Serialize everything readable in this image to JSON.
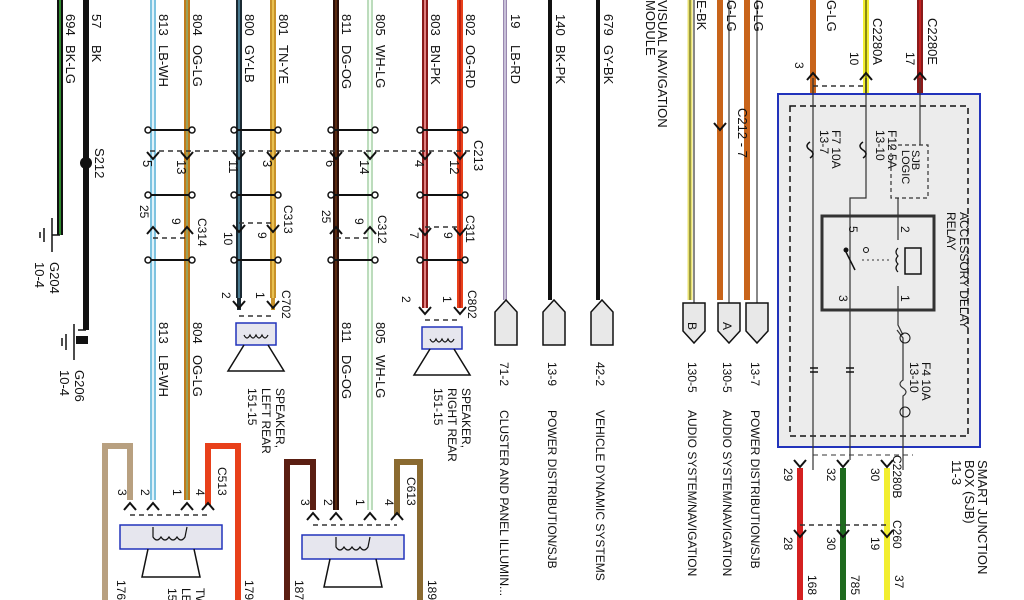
{
  "wires": [
    {
      "circuit": "694",
      "code": "BK-LG",
      "color": "#111111",
      "stripe": "#2e8b2e"
    },
    {
      "circuit": "57",
      "code": "BK",
      "color": "#111111",
      "stripe": ""
    },
    {
      "circuit": "813",
      "code": "LB-WH",
      "color": "#7ec3e0",
      "stripe": "#dff2fa"
    },
    {
      "circuit": "804",
      "code": "OG-LG",
      "color": "#c07a1a",
      "stripe": "#9aa05a"
    },
    {
      "circuit": "800",
      "code": "GY-LB",
      "color": "#1b2a33",
      "stripe": "#4a7a90"
    },
    {
      "circuit": "801",
      "code": "TN-YE",
      "color": "#c8922a",
      "stripe": "#e8c050"
    },
    {
      "circuit": "811",
      "code": "DG-OG",
      "color": "#2a0e08",
      "stripe": "#5a2a10"
    },
    {
      "circuit": "805",
      "code": "WH-LG",
      "color": "#bcdcbc",
      "stripe": "#f4fff4"
    },
    {
      "circuit": "803",
      "code": "BN-PK",
      "color": "#8a1a1a",
      "stripe": "#e08080"
    },
    {
      "circuit": "802",
      "code": "OG-RD",
      "color": "#e8401a",
      "stripe": "#c02010"
    },
    {
      "circuit": "19",
      "code": "LB-RD",
      "color": "#9a88b0",
      "stripe": "#c8c0d8"
    },
    {
      "circuit": "140",
      "code": "BK-PK",
      "color": "#111111",
      "stripe": ""
    },
    {
      "circuit": "679",
      "code": "GY-BK",
      "color": "#111111",
      "stripe": ""
    }
  ],
  "lower_wire_labels": [
    {
      "circuit": "813",
      "code": "LB-WH"
    },
    {
      "circuit": "804",
      "code": "OG-LG"
    },
    {
      "circuit": "811",
      "code": "DG-OG"
    },
    {
      "circuit": "805",
      "code": "WH-LG"
    }
  ],
  "grounds": [
    {
      "id": "G204",
      "page": "10-4"
    },
    {
      "id": "G206",
      "page": "10-4"
    }
  ],
  "splice": "S212",
  "connectors": {
    "c213": "C213",
    "c314": "C314",
    "c313": "C313",
    "c312": "C312",
    "c311": "C311",
    "c702": "C702",
    "c802": "C802",
    "c513": "C513",
    "c613": "C613",
    "c212": "C212 - 7",
    "c2280a": "C2280A",
    "c2280e": "C2280E",
    "c2280b": "C2280B",
    "c260": "C260"
  },
  "pins": {
    "c213": [
      "5",
      "13",
      "11",
      "3",
      "6",
      "14",
      "4",
      "12"
    ],
    "c314": [
      "25",
      "9"
    ],
    "c313": [
      "10",
      "9"
    ],
    "c312": [
      "25",
      "9"
    ],
    "c311": [
      "7",
      "9"
    ],
    "c702": [
      "2",
      "1"
    ],
    "c802": [
      "2",
      "1"
    ],
    "c513": [
      "3",
      "2",
      "1",
      "4"
    ],
    "c613": [
      "3",
      "2",
      "1",
      "4"
    ],
    "c2280_top": [
      "3",
      "10",
      "17"
    ],
    "c2280b": [
      "29",
      "32",
      "30"
    ],
    "c260": [
      "28",
      "30",
      "19"
    ],
    "relay": [
      "5",
      "2",
      "3",
      "1"
    ]
  },
  "speakers": [
    {
      "line1": "SPEAKER,",
      "line2": "LEFT REAR",
      "page": "151-15"
    },
    {
      "line1": "SPEAKER,",
      "line2": "RIGHT REAR",
      "page": "151-15"
    }
  ],
  "front_speaker_partial": {
    "l1": "TW",
    "l2": "LE",
    "l3": "15"
  },
  "module_label": {
    "l1": "VISUAL NAVIGATION",
    "l2": "MODULE"
  },
  "right_wire_codes": [
    "E-BK",
    "G-LG",
    "G-LG",
    "G-LG"
  ],
  "references": [
    {
      "letter": "",
      "page": "71-2",
      "system": "CLUSTER AND PANEL ILLUMIN..."
    },
    {
      "letter": "",
      "page": "13-9",
      "system": "POWER DISTRIBUTION/SJB"
    },
    {
      "letter": "",
      "page": "42-2",
      "system": "VEHICLE DYNAMIC SYSTEMS"
    },
    {
      "letter": "B",
      "page": "130-5",
      "system": "AUDIO SYSTEM/NAVIGATION"
    },
    {
      "letter": "A",
      "page": "130-5",
      "system": "AUDIO SYSTEM/NAVIGATION"
    },
    {
      "letter": "",
      "page": "13-7",
      "system": "POWER DISTRIBUTION/SJB"
    }
  ],
  "sjb": {
    "title_l1": "SMART JUNCTION",
    "title_l2": "BOX (SJB)",
    "page": "11-3",
    "relay_l1": "ACCESSORY DELAY",
    "relay_l2": "RELAY",
    "logic_l1": "SJB",
    "logic_l2": "LOGIC",
    "f7": "F7  10A",
    "f7_page": "13-7",
    "f12": "F12  5A",
    "f12_page": "13-10",
    "f4": "F4  10A",
    "f4_page": "13-10"
  },
  "bottom_circuits": [
    "176",
    "179",
    "187",
    "189",
    "168",
    "785",
    "37"
  ],
  "colors": {
    "box_border": "#2233bb",
    "box_fill": "#ececec",
    "red": "#d42020",
    "green": "#1e6a1e",
    "yellow": "#f2ee30"
  }
}
